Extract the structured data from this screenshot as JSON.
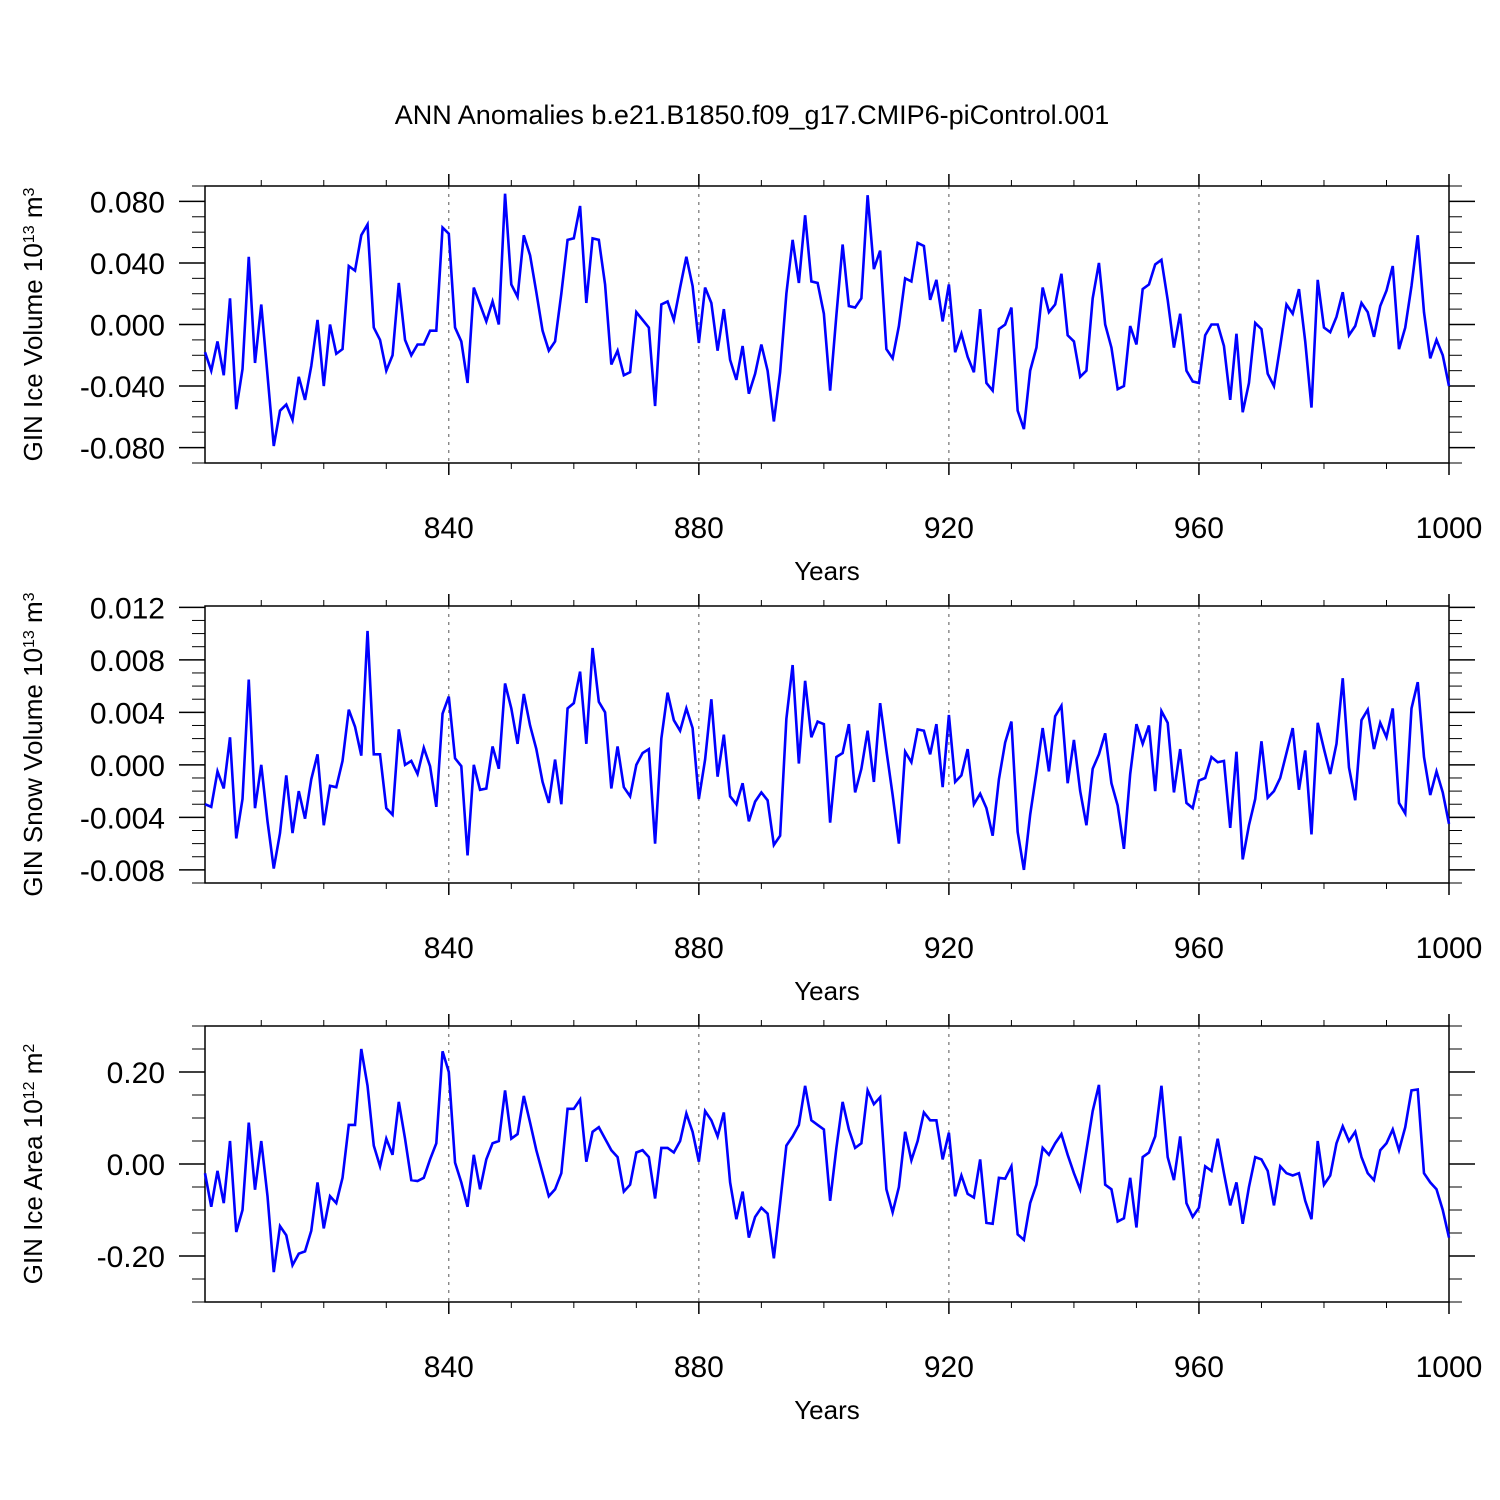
{
  "title": "ANN Anomalies b.e21.B1850.f09_g17.CMIP6-piControl.001",
  "colors": {
    "series": "#0000ff",
    "axis": "#000000",
    "refline": "#555555",
    "background": "#ffffff"
  },
  "chart_data": [
    {
      "type": "line",
      "title": "ANN Anomalies b.e21.B1850.f09_g17.CMIP6-piControl.001",
      "ylabel": "GIN Ice Volume 10",
      "ylabel_exp": "13",
      "ylabel_unit": " m",
      "ylabel_unit_exp": "3",
      "xlabel": "Years",
      "xlim": [
        801,
        1000
      ],
      "ylim": [
        -0.09,
        0.09
      ],
      "xticks": [
        840,
        880,
        920,
        960,
        1000
      ],
      "xtick_labels": [
        "840",
        "880",
        "920",
        "960",
        "1000"
      ],
      "yticks": [
        -0.08,
        -0.04,
        0.0,
        0.04,
        0.08
      ],
      "ytick_labels": [
        "-0.080",
        "-0.040",
        "0.000",
        "0.040",
        "0.080"
      ],
      "ref_lines_x": [
        840,
        880,
        920,
        960
      ],
      "grid": false,
      "series": [
        {
          "name": "GIN Ice Volume",
          "x_start": 801,
          "values": [
            -0.018,
            -0.03,
            -0.011,
            -0.033,
            0.017,
            -0.055,
            -0.029,
            0.044,
            -0.025,
            0.013,
            -0.033,
            -0.079,
            -0.056,
            -0.052,
            -0.062,
            -0.034,
            -0.049,
            -0.027,
            0.003,
            -0.04,
            0.0,
            -0.019,
            -0.016,
            0.038,
            0.035,
            0.058,
            0.065,
            -0.002,
            -0.01,
            -0.03,
            -0.02,
            0.027,
            -0.01,
            -0.02,
            -0.013,
            -0.013,
            -0.004,
            -0.004,
            0.063,
            0.059,
            -0.002,
            -0.011,
            -0.038,
            0.024,
            0.013,
            0.002,
            0.015,
            0.0,
            0.085,
            0.026,
            0.018,
            0.058,
            0.045,
            0.021,
            -0.004,
            -0.017,
            -0.011,
            0.02,
            0.055,
            0.056,
            0.077,
            0.014,
            0.056,
            0.055,
            0.026,
            -0.026,
            -0.017,
            -0.033,
            -0.031,
            0.008,
            0.003,
            -0.002,
            -0.053,
            0.013,
            0.015,
            0.003,
            0.024,
            0.044,
            0.025,
            -0.012,
            0.024,
            0.014,
            -0.017,
            0.01,
            -0.023,
            -0.036,
            -0.014,
            -0.045,
            -0.032,
            -0.013,
            -0.03,
            -0.063,
            -0.031,
            0.02,
            0.055,
            0.027,
            0.071,
            0.028,
            0.027,
            0.007,
            -0.043,
            0.006,
            0.052,
            0.012,
            0.011,
            0.017,
            0.084,
            0.036,
            0.048,
            -0.016,
            -0.022,
            -0.001,
            0.03,
            0.028,
            0.053,
            0.051,
            0.016,
            0.029,
            0.002,
            0.026,
            -0.018,
            -0.006,
            -0.021,
            -0.031,
            0.01,
            -0.038,
            -0.043,
            -0.003,
            0.0,
            0.011,
            -0.056,
            -0.068,
            -0.03,
            -0.015,
            0.024,
            0.008,
            0.013,
            0.033,
            -0.007,
            -0.011,
            -0.034,
            -0.03,
            0.017,
            0.04,
            0.0,
            -0.015,
            -0.042,
            -0.04,
            -0.001,
            -0.013,
            0.023,
            0.026,
            0.039,
            0.042,
            0.016,
            -0.015,
            0.007,
            -0.03,
            -0.037,
            -0.038,
            -0.007,
            0.0,
            0.0,
            -0.014,
            -0.049,
            -0.006,
            -0.057,
            -0.038,
            0.001,
            -0.003,
            -0.032,
            -0.04,
            -0.014,
            0.013,
            0.007,
            0.023,
            -0.011,
            -0.054,
            0.029,
            -0.002,
            -0.005,
            0.005,
            0.021,
            -0.007,
            -0.001,
            0.014,
            0.008,
            -0.008,
            0.012,
            0.022,
            0.038,
            -0.016,
            -0.002,
            0.025,
            0.058,
            0.008,
            -0.022,
            -0.01,
            -0.02,
            -0.04
          ]
        }
      ]
    },
    {
      "type": "line",
      "ylabel": "GIN Snow Volume 10",
      "ylabel_exp": "13",
      "ylabel_unit": " m",
      "ylabel_unit_exp": "3",
      "xlabel": "Years",
      "xlim": [
        801,
        1000
      ],
      "ylim": [
        -0.009,
        0.0121
      ],
      "xticks": [
        840,
        880,
        920,
        960,
        1000
      ],
      "xtick_labels": [
        "840",
        "880",
        "920",
        "960",
        "1000"
      ],
      "yticks": [
        -0.008,
        -0.004,
        0.0,
        0.004,
        0.008,
        0.012
      ],
      "ytick_labels": [
        "-0.008",
        "-0.004",
        "0.000",
        "0.004",
        "0.008",
        "0.012"
      ],
      "ref_lines_x": [
        840,
        880,
        920,
        960
      ],
      "grid": false,
      "series": [
        {
          "name": "GIN Snow Volume",
          "x_start": 801,
          "values": [
            -0.003,
            -0.0032,
            -0.0005,
            -0.0018,
            0.0021,
            -0.0056,
            -0.0026,
            0.0065,
            -0.0033,
            0.0,
            -0.0043,
            -0.0079,
            -0.0052,
            -0.0008,
            -0.0052,
            -0.002,
            -0.0041,
            -0.0011,
            0.0008,
            -0.0046,
            -0.0016,
            -0.0017,
            0.0003,
            0.0042,
            0.0029,
            0.0007,
            0.0102,
            0.0008,
            0.0008,
            -0.0033,
            -0.0038,
            0.0027,
            0.0,
            0.0003,
            -0.0007,
            0.0013,
            -0.0001,
            -0.0032,
            0.0039,
            0.0052,
            0.0005,
            -0.0001,
            -0.0069,
            0.0,
            -0.0019,
            -0.0018,
            0.0014,
            -0.0003,
            0.0062,
            0.0043,
            0.0016,
            0.0054,
            0.003,
            0.0012,
            -0.0013,
            -0.0029,
            0.0004,
            -0.003,
            0.0043,
            0.0047,
            0.0071,
            0.0016,
            0.0089,
            0.0048,
            0.004,
            -0.0018,
            0.0014,
            -0.0017,
            -0.0024,
            0.0,
            0.0009,
            0.0012,
            -0.006,
            0.002,
            0.0055,
            0.0034,
            0.0026,
            0.0043,
            0.0028,
            -0.0026,
            0.0004,
            0.005,
            -0.0009,
            0.0023,
            -0.0024,
            -0.003,
            -0.0014,
            -0.0043,
            -0.0028,
            -0.0021,
            -0.0027,
            -0.0061,
            -0.0054,
            0.0035,
            0.0076,
            0.0001,
            0.0064,
            0.0021,
            0.0033,
            0.0031,
            -0.0044,
            0.0006,
            0.0009,
            0.0031,
            -0.0021,
            -0.0003,
            0.0026,
            -0.0013,
            0.0047,
            0.0011,
            -0.0023,
            -0.006,
            0.001,
            0.0002,
            0.0027,
            0.0026,
            0.0008,
            0.0031,
            -0.0017,
            0.0038,
            -0.0013,
            -0.0008,
            0.0012,
            -0.003,
            -0.0022,
            -0.0033,
            -0.0054,
            -0.0011,
            0.0017,
            0.0033,
            -0.0051,
            -0.008,
            -0.0038,
            -0.0006,
            0.0028,
            -0.0005,
            0.0037,
            0.0045,
            -0.0014,
            0.0019,
            -0.002,
            -0.0046,
            -0.0003,
            0.0008,
            0.0024,
            -0.0014,
            -0.0031,
            -0.0064,
            -0.0007,
            0.0031,
            0.0016,
            0.003,
            -0.002,
            0.0041,
            0.0032,
            -0.0021,
            0.0012,
            -0.0029,
            -0.0033,
            -0.0012,
            -0.001,
            0.0006,
            0.0002,
            0.0003,
            -0.0048,
            0.001,
            -0.0072,
            -0.0046,
            -0.0026,
            0.0018,
            -0.0025,
            -0.002,
            -0.001,
            0.0009,
            0.0028,
            -0.0019,
            0.0011,
            -0.0053,
            0.0032,
            0.0012,
            -0.0007,
            0.0016,
            0.0066,
            -0.0002,
            -0.0027,
            0.0034,
            0.0042,
            0.0012,
            0.0032,
            0.0021,
            0.0043,
            -0.0029,
            -0.0037,
            0.0043,
            0.0063,
            0.0006,
            -0.0023,
            -0.0005,
            -0.0021,
            -0.0045
          ]
        }
      ]
    },
    {
      "type": "line",
      "ylabel": "GIN Ice Area 10",
      "ylabel_exp": "12",
      "ylabel_unit": " m",
      "ylabel_unit_exp": "2",
      "xlabel": "Years",
      "xlim": [
        801,
        1000
      ],
      "ylim": [
        -0.3,
        0.3
      ],
      "xticks": [
        840,
        880,
        920,
        960,
        1000
      ],
      "xtick_labels": [
        "840",
        "880",
        "920",
        "960",
        "1000"
      ],
      "yticks": [
        -0.2,
        0.0,
        0.2
      ],
      "ytick_labels": [
        "-0.20",
        "0.00",
        "0.20"
      ],
      "ref_lines_x": [
        840,
        880,
        920,
        960
      ],
      "grid": false,
      "series": [
        {
          "name": "GIN Ice Area",
          "x_start": 801,
          "values": [
            -0.02,
            -0.093,
            -0.015,
            -0.085,
            0.05,
            -0.148,
            -0.1,
            0.09,
            -0.056,
            0.05,
            -0.07,
            -0.235,
            -0.135,
            -0.155,
            -0.22,
            -0.195,
            -0.19,
            -0.145,
            -0.04,
            -0.14,
            -0.07,
            -0.085,
            -0.03,
            0.085,
            0.085,
            0.25,
            0.17,
            0.04,
            -0.005,
            0.055,
            0.02,
            0.135,
            0.055,
            -0.035,
            -0.037,
            -0.03,
            0.01,
            0.045,
            0.245,
            0.2,
            0.003,
            -0.04,
            -0.093,
            0.02,
            -0.055,
            0.01,
            0.045,
            0.05,
            0.16,
            0.055,
            0.065,
            0.148,
            0.09,
            0.03,
            -0.02,
            -0.07,
            -0.055,
            -0.02,
            0.12,
            0.12,
            0.14,
            0.005,
            0.07,
            0.08,
            0.055,
            0.03,
            0.015,
            -0.06,
            -0.045,
            0.025,
            0.03,
            0.015,
            -0.075,
            0.035,
            0.035,
            0.025,
            0.05,
            0.11,
            0.07,
            0.005,
            0.115,
            0.095,
            0.06,
            0.112,
            -0.04,
            -0.12,
            -0.06,
            -0.16,
            -0.115,
            -0.095,
            -0.108,
            -0.205,
            -0.085,
            0.04,
            0.06,
            0.085,
            0.17,
            0.095,
            0.085,
            0.075,
            -0.08,
            0.035,
            0.135,
            0.075,
            0.035,
            0.045,
            0.16,
            0.13,
            0.145,
            -0.055,
            -0.105,
            -0.05,
            0.07,
            0.008,
            0.05,
            0.112,
            0.095,
            0.095,
            0.01,
            0.068,
            -0.07,
            -0.025,
            -0.065,
            -0.073,
            0.01,
            -0.128,
            -0.13,
            -0.03,
            -0.032,
            -0.005,
            -0.153,
            -0.165,
            -0.085,
            -0.045,
            0.035,
            0.02,
            0.045,
            0.065,
            0.02,
            -0.02,
            -0.055,
            0.03,
            0.115,
            0.172,
            -0.045,
            -0.055,
            -0.125,
            -0.118,
            -0.03,
            -0.138,
            0.015,
            0.025,
            0.06,
            0.17,
            0.015,
            -0.035,
            0.06,
            -0.085,
            -0.115,
            -0.095,
            -0.005,
            -0.015,
            0.055,
            -0.02,
            -0.09,
            -0.04,
            -0.13,
            -0.05,
            0.015,
            0.01,
            -0.015,
            -0.09,
            -0.005,
            -0.02,
            -0.025,
            -0.02,
            -0.08,
            -0.12,
            0.05,
            -0.045,
            -0.025,
            0.045,
            0.082,
            0.05,
            0.07,
            0.015,
            -0.02,
            -0.035,
            0.03,
            0.045,
            0.075,
            0.03,
            0.08,
            0.16,
            0.162,
            -0.02,
            -0.04,
            -0.055,
            -0.1,
            -0.16
          ]
        }
      ]
    }
  ]
}
